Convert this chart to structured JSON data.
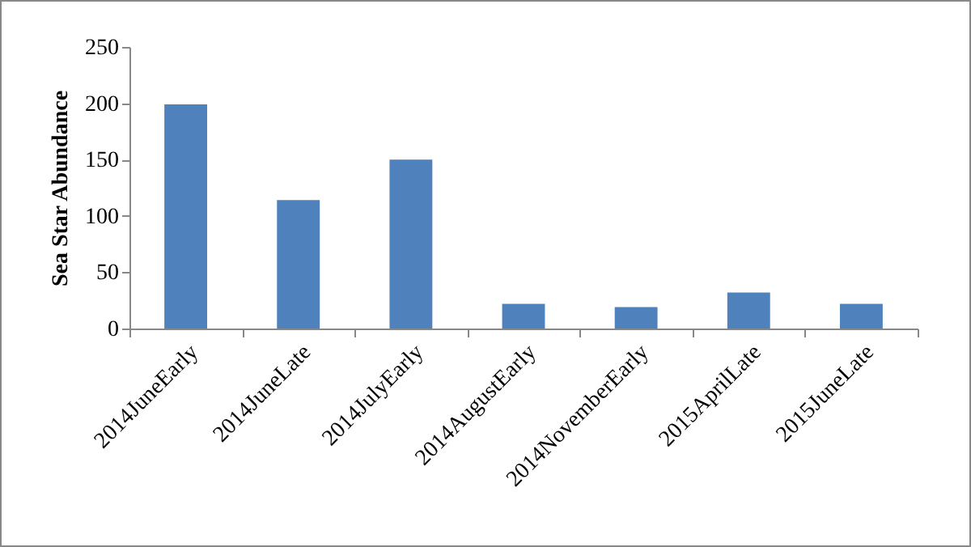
{
  "chart_data": {
    "type": "bar",
    "ylabel": "Sea Star Abundance",
    "categories": [
      "2014JuneEarly",
      "2014JuneLate",
      "2014JulyEarly",
      "2014AugustEarly",
      "2014NovemberEarly",
      "2015AprilLate",
      "2015JuneLate"
    ],
    "values": [
      199,
      114,
      150,
      22,
      19,
      32,
      22
    ],
    "color": "#4f81bd",
    "ylim": [
      0,
      250
    ],
    "yticks": [
      0,
      50,
      100,
      150,
      200,
      250
    ],
    "grid": false
  }
}
